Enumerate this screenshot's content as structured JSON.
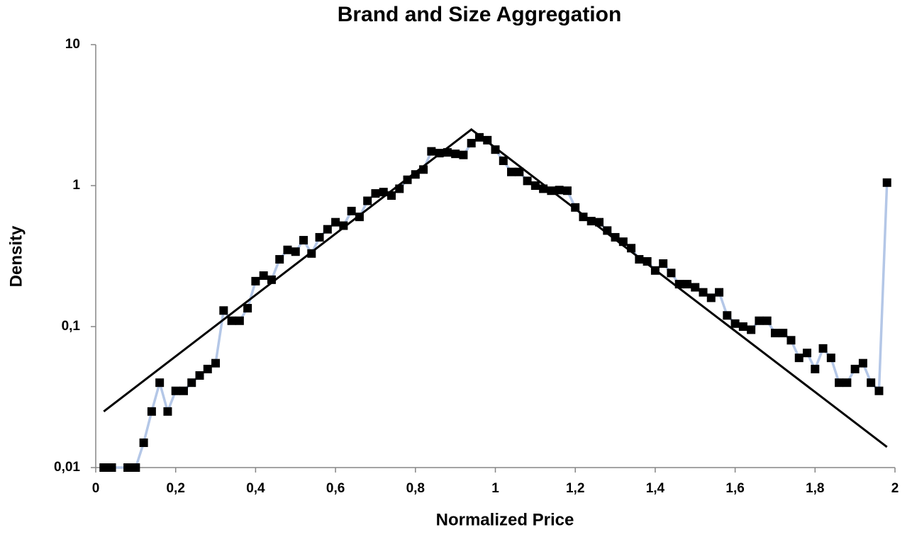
{
  "chart_data": {
    "type": "line",
    "title": "Brand and Size Aggregation",
    "x_label": "Normalized Price",
    "y_label": "Density",
    "log_y": true,
    "xlim": [
      0,
      2
    ],
    "xticks": [
      0,
      {
        "value": 0.2,
        "label": "0,2"
      },
      {
        "value": 0.4,
        "label": "0,4"
      },
      {
        "value": 0.6,
        "label": "0,6"
      },
      {
        "value": 0.8,
        "label": "0,8"
      },
      1,
      {
        "value": 1.2,
        "label": "1,2"
      },
      {
        "value": 1.4,
        "label": "1,4"
      },
      {
        "value": 1.6,
        "label": "1,6"
      },
      {
        "value": 1.8,
        "label": "1,8"
      },
      2
    ],
    "ylim": [
      0.01,
      10
    ],
    "yticks": [
      {
        "value": 0.01,
        "label": "0,01"
      },
      {
        "value": 0.1,
        "label": "0,1"
      },
      1,
      10
    ],
    "series": [
      {
        "color": "#000000",
        "line_color": "#b4c7e7",
        "marker": "square",
        "x": [
          0.02,
          0.04,
          0.08,
          0.1,
          0.12,
          0.14,
          0.16,
          0.18,
          0.2,
          0.22,
          0.24,
          0.26,
          0.28,
          0.3,
          0.32,
          0.34,
          0.36,
          0.38,
          0.4,
          0.42,
          0.44,
          0.46,
          0.48,
          0.5,
          0.52,
          0.54,
          0.56,
          0.58,
          0.6,
          0.62,
          0.64,
          0.66,
          0.68,
          0.7,
          0.72,
          0.74,
          0.76,
          0.78,
          0.8,
          0.82,
          0.84,
          0.86,
          0.88,
          0.9,
          0.92,
          0.94,
          0.96,
          0.98,
          1.0,
          1.02,
          1.04,
          1.06,
          1.08,
          1.1,
          1.12,
          1.14,
          1.16,
          1.18,
          1.2,
          1.22,
          1.24,
          1.26,
          1.28,
          1.3,
          1.32,
          1.34,
          1.36,
          1.38,
          1.4,
          1.42,
          1.44,
          1.46,
          1.48,
          1.5,
          1.52,
          1.54,
          1.56,
          1.58,
          1.6,
          1.62,
          1.64,
          1.66,
          1.68,
          1.7,
          1.72,
          1.74,
          1.76,
          1.78,
          1.8,
          1.82,
          1.84,
          1.86,
          1.88,
          1.9,
          1.92,
          1.94,
          1.96,
          1.98
        ],
        "values": [
          0.01,
          0.01,
          0.01,
          0.01,
          0.015,
          0.025,
          0.04,
          0.025,
          0.035,
          0.035,
          0.04,
          0.045,
          0.05,
          0.055,
          0.13,
          0.11,
          0.11,
          0.135,
          0.21,
          0.23,
          0.215,
          0.3,
          0.35,
          0.34,
          0.41,
          0.33,
          0.43,
          0.49,
          0.55,
          0.52,
          0.66,
          0.6,
          0.78,
          0.88,
          0.9,
          0.85,
          0.95,
          1.1,
          1.2,
          1.3,
          1.75,
          1.7,
          1.72,
          1.68,
          1.65,
          2.0,
          2.2,
          2.1,
          1.8,
          1.5,
          1.25,
          1.25,
          1.08,
          1.0,
          0.95,
          0.92,
          0.93,
          0.92,
          0.7,
          0.6,
          0.56,
          0.55,
          0.48,
          0.43,
          0.4,
          0.36,
          0.3,
          0.29,
          0.25,
          0.28,
          0.24,
          0.2,
          0.2,
          0.19,
          0.175,
          0.16,
          0.175,
          0.12,
          0.105,
          0.1,
          0.095,
          0.11,
          0.11,
          0.09,
          0.09,
          0.08,
          0.06,
          0.065,
          0.05,
          0.07,
          0.06,
          0.04,
          0.04,
          0.05,
          0.055,
          0.04,
          0.035,
          1.05
        ]
      },
      {
        "color": "#000000",
        "marker": "none",
        "x": [
          0.02,
          0.94,
          1.98
        ],
        "values": [
          0.025,
          2.5,
          0.014
        ]
      }
    ]
  }
}
